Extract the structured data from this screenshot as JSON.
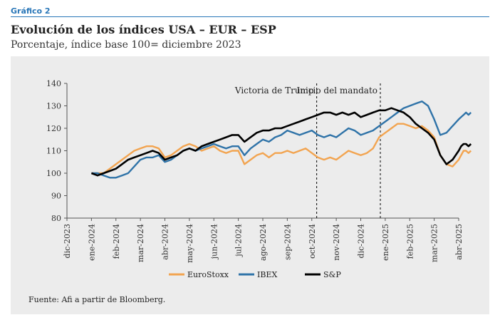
{
  "header": {
    "kicker": "Gráfico 2",
    "title": "Evolución de los índices USA – EUR – ESP",
    "subtitle": "Porcentaje, índice base 100= diciembre 2023"
  },
  "source": "Fuente: Afi a partir de Bloomberg.",
  "chart_data": {
    "type": "line",
    "ylim": [
      80,
      140
    ],
    "yticks": [
      80,
      90,
      100,
      110,
      120,
      130,
      140
    ],
    "xlabels": [
      "dic-2023",
      "ene-2024",
      "feb-2024",
      "mar-2024",
      "abr-2024",
      "may-2024",
      "jun-2024",
      "jul-2024",
      "ago-2024",
      "sep-2024",
      "oct-2024",
      "nov-2024",
      "dic-2024",
      "ene-2025",
      "feb-2025",
      "mar-2025",
      "abr-2025"
    ],
    "grid": false,
    "legend": "bottom",
    "annotations": [
      {
        "label": "Victoria de Trump",
        "x": 10.2
      },
      {
        "label": "Inicio del mandato",
        "x": 12.8
      }
    ],
    "x": [
      1.0,
      1.25,
      1.5,
      1.75,
      2.0,
      2.25,
      2.5,
      2.75,
      3.0,
      3.25,
      3.5,
      3.75,
      4.0,
      4.25,
      4.5,
      4.75,
      5.0,
      5.25,
      5.5,
      5.75,
      6.0,
      6.25,
      6.5,
      6.75,
      7.0,
      7.25,
      7.5,
      7.75,
      8.0,
      8.25,
      8.5,
      8.75,
      9.0,
      9.25,
      9.5,
      9.75,
      10.0,
      10.25,
      10.5,
      10.75,
      11.0,
      11.25,
      11.5,
      11.75,
      12.0,
      12.25,
      12.5,
      12.75,
      13.0,
      13.25,
      13.5,
      13.75,
      14.0,
      14.25,
      14.5,
      14.75,
      15.0,
      15.25,
      15.5,
      15.75,
      16.0,
      16.1,
      16.2,
      16.3,
      16.4,
      16.5
    ],
    "series": [
      {
        "name": "EuroStoxx",
        "color": "#f2a450",
        "values": [
          100,
          100,
          100,
          102,
          104,
          106,
          108,
          110,
          111,
          112,
          112,
          111,
          107,
          108,
          110,
          112,
          113,
          112,
          110,
          111,
          112,
          110,
          109,
          110,
          110,
          104,
          106,
          108,
          109,
          107,
          109,
          109,
          110,
          109,
          110,
          111,
          109,
          107,
          106,
          107,
          106,
          108,
          110,
          109,
          108,
          109,
          111,
          116,
          118,
          120,
          122,
          122,
          121,
          120,
          121,
          119,
          116,
          108,
          104,
          103,
          106,
          108,
          110,
          110,
          109,
          110
        ]
      },
      {
        "name": "IBEX",
        "color": "#2f73a8",
        "values": [
          100,
          100,
          99,
          98,
          98,
          99,
          100,
          103,
          106,
          107,
          107,
          108,
          105,
          106,
          108,
          110,
          111,
          110,
          111,
          112,
          113,
          112,
          111,
          112,
          112,
          108,
          111,
          113,
          115,
          114,
          116,
          117,
          119,
          118,
          117,
          118,
          119,
          117,
          116,
          117,
          116,
          118,
          120,
          119,
          117,
          118,
          119,
          121,
          123,
          125,
          127,
          129,
          130,
          131,
          132,
          130,
          124,
          117,
          118,
          121,
          124,
          125,
          126,
          127,
          126,
          127
        ]
      },
      {
        "name": "S&P",
        "color": "#000000",
        "values": [
          100,
          99,
          100,
          101,
          102,
          104,
          106,
          107,
          108,
          109,
          110,
          109,
          106,
          107,
          108,
          110,
          111,
          110,
          112,
          113,
          114,
          115,
          116,
          117,
          117,
          114,
          116,
          118,
          119,
          119,
          120,
          120,
          121,
          122,
          123,
          124,
          125,
          126,
          127,
          127,
          126,
          127,
          126,
          127,
          125,
          126,
          127,
          128,
          128,
          129,
          128,
          127,
          125,
          122,
          120,
          118,
          115,
          108,
          104,
          106,
          110,
          112,
          113,
          113,
          112,
          113
        ]
      }
    ]
  }
}
